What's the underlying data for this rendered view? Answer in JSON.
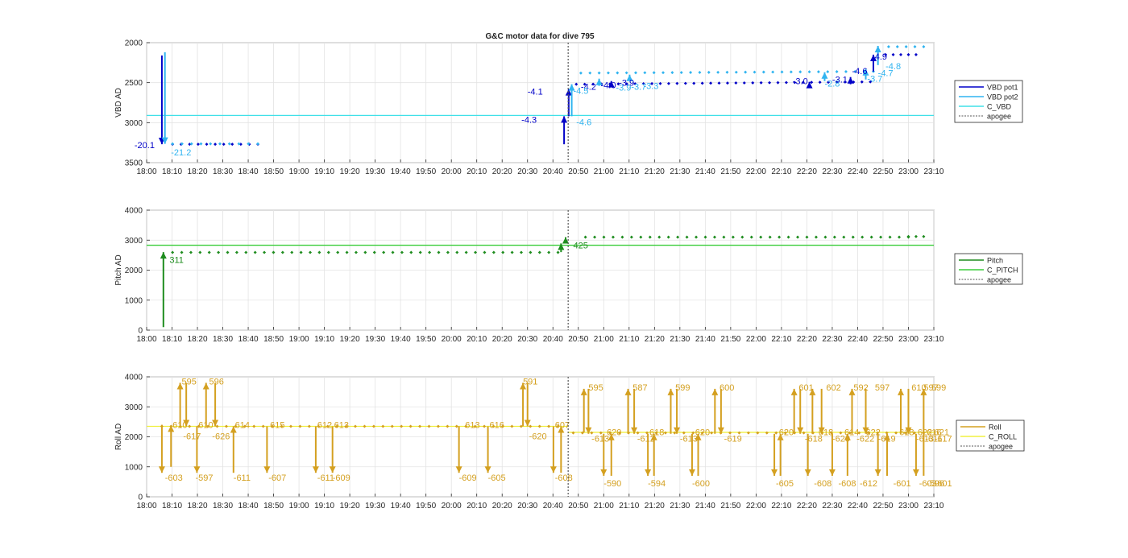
{
  "figure": {
    "title": "G&C motor data for dive 795"
  },
  "colors": {
    "vbd_pot1": "#0000c8",
    "vbd_pot2": "#30b4f0",
    "c_vbd": "#40e0e8",
    "pitch": "#1e8c1e",
    "c_pitch": "#3ccd3c",
    "roll": "#d4a020",
    "c_roll": "#f0f040",
    "apogee": "#555555"
  },
  "chart_data": [
    {
      "type": "line",
      "ylabel": "VBD AD",
      "ylim": [
        2000,
        3500
      ],
      "y_reversed": true,
      "yticks": [
        2000,
        2500,
        3000,
        3500
      ],
      "xlim": [
        18.0,
        23.1667
      ],
      "xtick_labels": [
        "18:00",
        "18:10",
        "18:20",
        "18:30",
        "18:40",
        "18:50",
        "19:00",
        "19:10",
        "19:20",
        "19:30",
        "19:40",
        "19:50",
        "20:00",
        "20:10",
        "20:20",
        "20:30",
        "20:40",
        "20:50",
        "21:00",
        "21:10",
        "21:20",
        "21:30",
        "21:40",
        "21:50",
        "22:00",
        "22:10",
        "22:20",
        "22:30",
        "22:40",
        "22:50",
        "23:00",
        "23:10"
      ],
      "grid": true,
      "legend_placement": "outside-right",
      "legend": [
        "VBD pot1",
        "VBD pot2",
        "C_VBD",
        "apogee"
      ],
      "apogee_x": 20.7667,
      "constant_lines": [
        {
          "name": "C_VBD",
          "y": 2910,
          "color_key": "c_vbd"
        }
      ],
      "pot1_segments": [
        {
          "t": [
            18.17,
            18.73
          ],
          "y": 3270
        },
        {
          "t": [
            20.82,
            22.75
          ],
          "y": 2520,
          "rise": 30
        },
        {
          "t": [
            22.85,
            23.05
          ],
          "y": 2150
        }
      ],
      "pot2_segments": [
        {
          "t": [
            18.17,
            18.73
          ],
          "y": 3265
        },
        {
          "t": [
            20.85,
            22.77
          ],
          "y": 2380,
          "rise": 20
        },
        {
          "t": [
            22.87,
            23.1
          ],
          "y": 2050
        }
      ],
      "arrows": [
        {
          "x": 18.1,
          "y1": 2160,
          "y2": 3270,
          "series": "pot1"
        },
        {
          "x": 18.12,
          "y1": 2120,
          "y2": 3265,
          "series": "pot2"
        },
        {
          "x": 20.74,
          "y1": 3270,
          "y2": 2920,
          "series": "pot1"
        },
        {
          "x": 20.77,
          "y1": 2920,
          "y2": 2580,
          "series": "pot1"
        },
        {
          "x": 20.79,
          "y1": 2920,
          "y2": 2520,
          "series": "pot2"
        },
        {
          "x": 20.97,
          "y1": 2540,
          "y2": 2450,
          "series": "pot2"
        },
        {
          "x": 21.05,
          "y1": 2540,
          "y2": 2480,
          "series": "pot1"
        },
        {
          "x": 21.17,
          "y1": 2460,
          "y2": 2400,
          "series": "pot2"
        },
        {
          "x": 22.35,
          "y1": 2560,
          "y2": 2490,
          "series": "pot1"
        },
        {
          "x": 22.45,
          "y1": 2480,
          "y2": 2370,
          "series": "pot2"
        },
        {
          "x": 22.62,
          "y1": 2520,
          "y2": 2430,
          "series": "pot1"
        },
        {
          "x": 22.72,
          "y1": 2460,
          "y2": 2330,
          "series": "pot2"
        },
        {
          "x": 22.77,
          "y1": 2360,
          "y2": 2150,
          "series": "pot1"
        },
        {
          "x": 22.8,
          "y1": 2280,
          "y2": 2040,
          "series": "pot2"
        }
      ],
      "labels": [
        {
          "text": "-20.1",
          "x": 17.92,
          "y": 3280,
          "series": "pot1"
        },
        {
          "text": "-21.2",
          "x": 18.16,
          "y": 3370,
          "series": "pot2"
        },
        {
          "text": "-4.1",
          "x": 20.5,
          "y": 2610,
          "series": "pot1"
        },
        {
          "text": "-4.3",
          "x": 20.46,
          "y": 2960,
          "series": "pot1"
        },
        {
          "text": "-4.6",
          "x": 20.82,
          "y": 2990,
          "series": "pot2"
        },
        {
          "text": "-4.2",
          "x": 20.85,
          "y": 2550,
          "series": "pot1"
        },
        {
          "text": "-4.5",
          "x": 20.8,
          "y": 2600,
          "series": "pot2"
        },
        {
          "text": "-4.0",
          "x": 20.98,
          "y": 2530,
          "series": "pot1"
        },
        {
          "text": "-3.9",
          "x": 21.1,
          "y": 2500,
          "series": "pot1"
        },
        {
          "text": "-3.9",
          "x": 21.08,
          "y": 2560,
          "series": "pot2"
        },
        {
          "text": "-3.7",
          "x": 21.18,
          "y": 2550,
          "series": "pot2"
        },
        {
          "text": "-3.3",
          "x": 21.26,
          "y": 2540,
          "series": "pot2"
        },
        {
          "text": "-3.0",
          "x": 22.24,
          "y": 2480,
          "series": "pot1"
        },
        {
          "text": "-2.8",
          "x": 22.45,
          "y": 2510,
          "series": "pot2"
        },
        {
          "text": "-3.1",
          "x": 22.5,
          "y": 2460,
          "series": "pot1"
        },
        {
          "text": "-4.6",
          "x": 22.63,
          "y": 2350,
          "series": "pot1"
        },
        {
          "text": "-3.7",
          "x": 22.73,
          "y": 2450,
          "series": "pot2"
        },
        {
          "text": "-4.9",
          "x": 22.76,
          "y": 2170,
          "series": "pot1"
        },
        {
          "text": "-4.8",
          "x": 22.85,
          "y": 2290,
          "series": "pot2"
        },
        {
          "text": "-4.7",
          "x": 22.8,
          "y": 2380,
          "series": "pot2"
        }
      ]
    },
    {
      "type": "line",
      "ylabel": "Pitch AD",
      "ylim": [
        0,
        4000
      ],
      "y_reversed": false,
      "yticks": [
        0,
        1000,
        2000,
        3000,
        4000
      ],
      "xlim": [
        18.0,
        23.1667
      ],
      "grid": true,
      "legend_placement": "outside-right",
      "legend": [
        "Pitch",
        "C_PITCH",
        "apogee"
      ],
      "apogee_x": 20.7667,
      "constant_lines": [
        {
          "name": "C_PITCH",
          "y": 2830,
          "color_key": "c_pitch"
        }
      ],
      "pitch_segments": [
        {
          "t": [
            18.17,
            20.7
          ],
          "y": 2590
        },
        {
          "t": [
            20.88,
            23.0
          ],
          "y": 3100
        },
        {
          "t": [
            23.0,
            23.1
          ],
          "y": 3120
        }
      ],
      "arrows": [
        {
          "x": 18.11,
          "y1": 100,
          "y2": 2600
        },
        {
          "x": 20.72,
          "y1": 2600,
          "y2": 2890
        },
        {
          "x": 20.75,
          "y1": 2890,
          "y2": 3100
        }
      ],
      "labels": [
        {
          "text": "311",
          "x": 18.15,
          "y": 2350
        },
        {
          "text": "425",
          "x": 20.8,
          "y": 2830
        }
      ]
    },
    {
      "type": "line",
      "ylabel": "Roll AD",
      "ylim": [
        0,
        4000
      ],
      "y_reversed": false,
      "yticks": [
        0,
        1000,
        2000,
        3000,
        4000
      ],
      "xlim": [
        18.0,
        23.1667
      ],
      "grid": true,
      "legend_placement": "outside-right",
      "legend": [
        "Roll",
        "C_ROLL",
        "apogee"
      ],
      "apogee_x": 20.7667,
      "constant_lines": [
        {
          "name": "C_ROLL",
          "y_start": 2350,
          "y_end": 2150,
          "color_key": "c_roll"
        }
      ],
      "roll_segments": [
        {
          "t": [
            18.1,
            20.7
          ],
          "y": 2350
        },
        {
          "t": [
            20.8,
            23.1
          ],
          "y": 2130
        }
      ],
      "arrows": [
        {
          "x": 18.1,
          "y1": 2400,
          "y2": 800,
          "dir": "down"
        },
        {
          "x": 18.16,
          "y1": 1000,
          "y2": 2380,
          "dir": "up"
        },
        {
          "x": 18.22,
          "y1": 2380,
          "y2": 3800,
          "dir": "up"
        },
        {
          "x": 18.26,
          "y1": 3800,
          "y2": 2350,
          "dir": "down"
        },
        {
          "x": 18.33,
          "y1": 2350,
          "y2": 800,
          "dir": "down"
        },
        {
          "x": 18.39,
          "y1": 2350,
          "y2": 3800,
          "dir": "up"
        },
        {
          "x": 18.45,
          "y1": 3800,
          "y2": 2350,
          "dir": "down"
        },
        {
          "x": 18.57,
          "y1": 800,
          "y2": 2350,
          "dir": "up"
        },
        {
          "x": 18.79,
          "y1": 2350,
          "y2": 800,
          "dir": "down"
        },
        {
          "x": 19.11,
          "y1": 2350,
          "y2": 800,
          "dir": "down"
        },
        {
          "x": 19.22,
          "y1": 2350,
          "y2": 800,
          "dir": "down"
        },
        {
          "x": 20.05,
          "y1": 2350,
          "y2": 800,
          "dir": "down"
        },
        {
          "x": 20.24,
          "y1": 2350,
          "y2": 800,
          "dir": "down"
        },
        {
          "x": 20.47,
          "y1": 2350,
          "y2": 3800,
          "dir": "up"
        },
        {
          "x": 20.5,
          "y1": 3800,
          "y2": 2350,
          "dir": "down"
        },
        {
          "x": 20.67,
          "y1": 2350,
          "y2": 800,
          "dir": "down"
        },
        {
          "x": 20.72,
          "y1": 800,
          "y2": 2350,
          "dir": "up"
        },
        {
          "x": 20.87,
          "y1": 2150,
          "y2": 3600,
          "dir": "up"
        },
        {
          "x": 20.9,
          "y1": 3600,
          "y2": 2100,
          "dir": "down"
        },
        {
          "x": 21.0,
          "y1": 2100,
          "y2": 700,
          "dir": "down"
        },
        {
          "x": 21.05,
          "y1": 700,
          "y2": 2100,
          "dir": "up"
        },
        {
          "x": 21.16,
          "y1": 2100,
          "y2": 3600,
          "dir": "up"
        },
        {
          "x": 21.2,
          "y1": 3600,
          "y2": 2100,
          "dir": "down"
        },
        {
          "x": 21.29,
          "y1": 2100,
          "y2": 700,
          "dir": "down"
        },
        {
          "x": 21.33,
          "y1": 700,
          "y2": 2100,
          "dir": "up"
        },
        {
          "x": 21.44,
          "y1": 2100,
          "y2": 3600,
          "dir": "up"
        },
        {
          "x": 21.48,
          "y1": 3600,
          "y2": 2100,
          "dir": "down"
        },
        {
          "x": 21.58,
          "y1": 2100,
          "y2": 700,
          "dir": "down"
        },
        {
          "x": 21.62,
          "y1": 700,
          "y2": 2100,
          "dir": "up"
        },
        {
          "x": 21.73,
          "y1": 2100,
          "y2": 3600,
          "dir": "up"
        },
        {
          "x": 21.77,
          "y1": 3600,
          "y2": 2100,
          "dir": "down"
        },
        {
          "x": 22.12,
          "y1": 2100,
          "y2": 700,
          "dir": "down"
        },
        {
          "x": 22.16,
          "y1": 700,
          "y2": 2100,
          "dir": "up"
        },
        {
          "x": 22.25,
          "y1": 2100,
          "y2": 3600,
          "dir": "up"
        },
        {
          "x": 22.29,
          "y1": 3600,
          "y2": 2100,
          "dir": "down"
        },
        {
          "x": 22.34,
          "y1": 2100,
          "y2": 700,
          "dir": "down"
        },
        {
          "x": 22.37,
          "y1": 2100,
          "y2": 3600,
          "dir": "up"
        },
        {
          "x": 22.43,
          "y1": 3600,
          "y2": 2100,
          "dir": "down"
        },
        {
          "x": 22.5,
          "y1": 2100,
          "y2": 700,
          "dir": "down"
        },
        {
          "x": 22.6,
          "y1": 700,
          "y2": 2100,
          "dir": "up"
        },
        {
          "x": 22.63,
          "y1": 2100,
          "y2": 3600,
          "dir": "up"
        },
        {
          "x": 22.72,
          "y1": 3600,
          "y2": 2100,
          "dir": "down"
        },
        {
          "x": 22.8,
          "y1": 2100,
          "y2": 700,
          "dir": "down"
        },
        {
          "x": 22.86,
          "y1": 700,
          "y2": 2100,
          "dir": "up"
        },
        {
          "x": 22.95,
          "y1": 2100,
          "y2": 3600,
          "dir": "up"
        },
        {
          "x": 23.0,
          "y1": 3600,
          "y2": 2100,
          "dir": "down"
        },
        {
          "x": 23.05,
          "y1": 2100,
          "y2": 700,
          "dir": "down"
        },
        {
          "x": 23.1,
          "y1": 700,
          "y2": 3600,
          "dir": "up"
        }
      ],
      "labels": [
        {
          "text": "-603",
          "x": 18.12,
          "y": 640
        },
        {
          "text": "610",
          "x": 18.17,
          "y": 2400
        },
        {
          "text": "595",
          "x": 18.23,
          "y": 3850
        },
        {
          "text": "-617",
          "x": 18.24,
          "y": 2030
        },
        {
          "text": "-597",
          "x": 18.32,
          "y": 640
        },
        {
          "text": "610",
          "x": 18.34,
          "y": 2400
        },
        {
          "text": "596",
          "x": 18.41,
          "y": 3850
        },
        {
          "text": "-626",
          "x": 18.43,
          "y": 2030
        },
        {
          "text": "614",
          "x": 18.58,
          "y": 2400
        },
        {
          "text": "-611",
          "x": 18.57,
          "y": 640
        },
        {
          "text": "615",
          "x": 18.81,
          "y": 2400
        },
        {
          "text": "-607",
          "x": 18.8,
          "y": 640
        },
        {
          "text": "612",
          "x": 19.12,
          "y": 2400
        },
        {
          "text": "613",
          "x": 19.23,
          "y": 2400
        },
        {
          "text": "-611",
          "x": 19.12,
          "y": 640
        },
        {
          "text": "-609",
          "x": 19.22,
          "y": 640
        },
        {
          "text": "613",
          "x": 20.09,
          "y": 2400
        },
        {
          "text": "616",
          "x": 20.25,
          "y": 2400
        },
        {
          "text": "-609",
          "x": 20.05,
          "y": 640
        },
        {
          "text": "-605",
          "x": 20.24,
          "y": 640
        },
        {
          "text": "591",
          "x": 20.47,
          "y": 3850
        },
        {
          "text": "-620",
          "x": 20.51,
          "y": 2030
        },
        {
          "text": "607",
          "x": 20.68,
          "y": 2400
        },
        {
          "text": "-608",
          "x": 20.68,
          "y": 640
        },
        {
          "text": "595",
          "x": 20.9,
          "y": 3650
        },
        {
          "text": "-613",
          "x": 20.92,
          "y": 1940
        },
        {
          "text": "620",
          "x": 21.02,
          "y": 2160
        },
        {
          "text": "-590",
          "x": 21.0,
          "y": 460
        },
        {
          "text": "587",
          "x": 21.19,
          "y": 3650
        },
        {
          "text": "-612",
          "x": 21.22,
          "y": 1940
        },
        {
          "text": "618",
          "x": 21.3,
          "y": 2160
        },
        {
          "text": "-594",
          "x": 21.29,
          "y": 460
        },
        {
          "text": "599",
          "x": 21.47,
          "y": 3650
        },
        {
          "text": "-613",
          "x": 21.5,
          "y": 1940
        },
        {
          "text": "620",
          "x": 21.6,
          "y": 2160
        },
        {
          "text": "-600",
          "x": 21.58,
          "y": 460
        },
        {
          "text": "600",
          "x": 21.76,
          "y": 3650
        },
        {
          "text": "-619",
          "x": 21.79,
          "y": 1940
        },
        {
          "text": "620",
          "x": 22.15,
          "y": 2160
        },
        {
          "text": "-605",
          "x": 22.13,
          "y": 460
        },
        {
          "text": "601",
          "x": 22.28,
          "y": 3650
        },
        {
          "text": "-618",
          "x": 22.32,
          "y": 1940
        },
        {
          "text": "618",
          "x": 22.41,
          "y": 2160
        },
        {
          "text": "-608",
          "x": 22.38,
          "y": 460
        },
        {
          "text": "602",
          "x": 22.46,
          "y": 3650
        },
        {
          "text": "-620",
          "x": 22.5,
          "y": 1940
        },
        {
          "text": "614",
          "x": 22.58,
          "y": 2160
        },
        {
          "text": "-608",
          "x": 22.54,
          "y": 460
        },
        {
          "text": "592",
          "x": 22.64,
          "y": 3650
        },
        {
          "text": "-622",
          "x": 22.66,
          "y": 1940
        },
        {
          "text": "622",
          "x": 22.72,
          "y": 2160
        },
        {
          "text": "-612",
          "x": 22.68,
          "y": 460
        },
        {
          "text": "597",
          "x": 22.78,
          "y": 3650
        },
        {
          "text": "-619",
          "x": 22.8,
          "y": 1940
        },
        {
          "text": "618",
          "x": 22.94,
          "y": 2160
        },
        {
          "text": "-601",
          "x": 22.9,
          "y": 460
        },
        {
          "text": "610",
          "x": 23.02,
          "y": 3650
        },
        {
          "text": "622",
          "x": 23.06,
          "y": 2160
        },
        {
          "text": "-613",
          "x": 23.05,
          "y": 1940
        },
        {
          "text": "-603",
          "x": 23.07,
          "y": 460
        },
        {
          "text": "597",
          "x": 23.1,
          "y": 3650
        },
        {
          "text": "599",
          "x": 23.15,
          "y": 3650
        },
        {
          "text": "616",
          "x": 23.12,
          "y": 2160
        },
        {
          "text": "-611",
          "x": 23.11,
          "y": 1940
        },
        {
          "text": "621",
          "x": 23.17,
          "y": 2160
        },
        {
          "text": "-617",
          "x": 23.17,
          "y": 1940
        },
        {
          "text": "-596",
          "x": 23.12,
          "y": 460
        },
        {
          "text": "-601",
          "x": 23.17,
          "y": 460
        }
      ]
    }
  ]
}
